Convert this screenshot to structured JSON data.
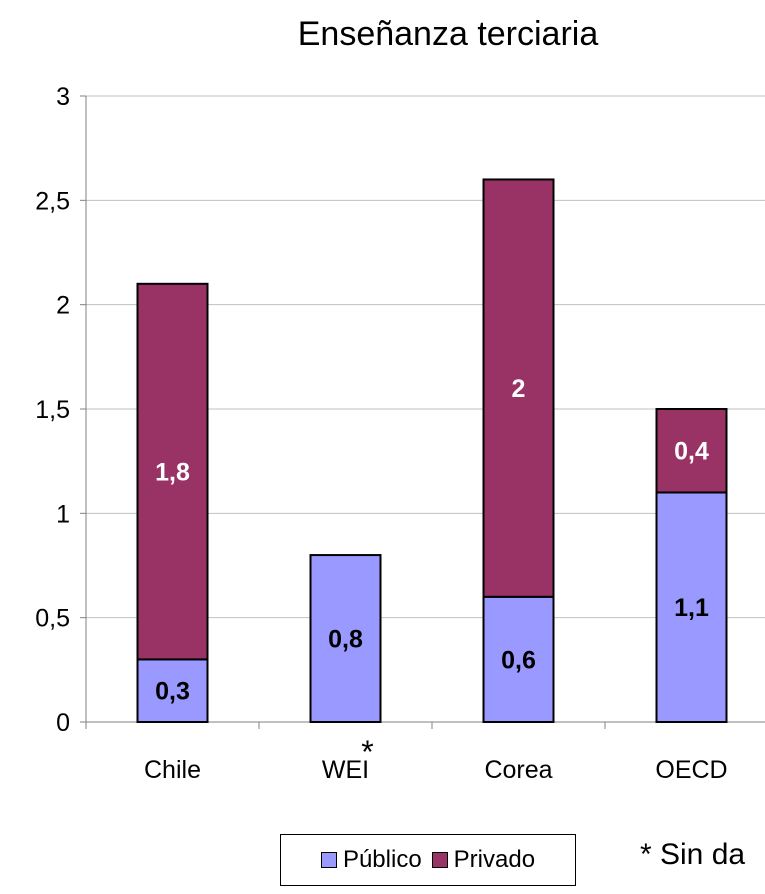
{
  "chart_data": {
    "type": "bar",
    "stacked": true,
    "title": "Enseñanza terciaria",
    "xlabel": "",
    "ylabel": "",
    "categories": [
      "Chile",
      "WEI",
      "Corea",
      "OECD"
    ],
    "category_markers": [
      "",
      "*",
      "",
      ""
    ],
    "series": [
      {
        "name": "Público",
        "values": [
          0.3,
          0.8,
          0.6,
          1.1
        ],
        "labels": [
          "0,3",
          "0,8",
          "0,6",
          "1,1"
        ],
        "color": "#9999ff",
        "label_color": "#000000"
      },
      {
        "name": "Privado",
        "values": [
          1.8,
          null,
          2.0,
          0.4
        ],
        "labels": [
          "1,8",
          "",
          "2",
          "0,4"
        ],
        "color": "#993366",
        "label_color": "#ffffff"
      }
    ],
    "ylim": [
      0,
      3
    ],
    "yticks": [
      0,
      0.5,
      1,
      1.5,
      2,
      2.5,
      3
    ],
    "ytick_labels": [
      "0",
      "0,5",
      "1",
      "1,5",
      "2",
      "2,5",
      "3"
    ],
    "grid": true,
    "legend": "bottom"
  },
  "footnote": "* Sin da"
}
